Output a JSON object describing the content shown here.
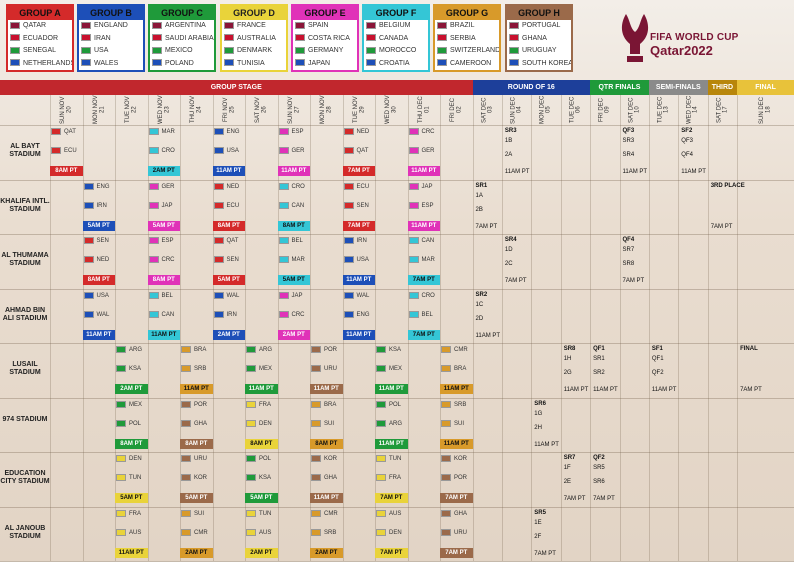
{
  "groups": [
    {
      "title": "GROUP A",
      "color": "#d42a2a",
      "teams": [
        "QATAR",
        "ECUADOR",
        "SENEGAL",
        "NETHERLANDS"
      ]
    },
    {
      "title": "GROUP B",
      "color": "#1d4fb8",
      "teams": [
        "ENGLAND",
        "IRAN",
        "USA",
        "WALES"
      ]
    },
    {
      "title": "GROUP C",
      "color": "#1f9a3a",
      "teams": [
        "ARGENTINA",
        "SAUDI ARABIA",
        "MEXICO",
        "POLAND"
      ]
    },
    {
      "title": "GROUP D",
      "color": "#e9d33a",
      "teams": [
        "FRANCE",
        "AUSTRALIA",
        "DENMARK",
        "TUNISIA"
      ]
    },
    {
      "title": "GROUP E",
      "color": "#e032b8",
      "teams": [
        "SPAIN",
        "COSTA RICA",
        "GERMANY",
        "JAPAN"
      ]
    },
    {
      "title": "GROUP F",
      "color": "#34c6d6",
      "teams": [
        "BELGIUM",
        "CANADA",
        "MOROCCO",
        "CROATIA"
      ]
    },
    {
      "title": "GROUP G",
      "color": "#d89a2a",
      "teams": [
        "BRAZIL",
        "SERBIA",
        "SWITZERLAND",
        "CAMEROON"
      ]
    },
    {
      "title": "GROUP H",
      "color": "#9b6a4a",
      "teams": [
        "PORTUGAL",
        "GHANA",
        "URUGUAY",
        "SOUTH KOREA"
      ]
    }
  ],
  "logo": {
    "line1": "FIFA WORLD CUP",
    "line2": "Qatar2022"
  },
  "phases": [
    {
      "label": "GROUP STAGE",
      "color": "#c1272d"
    },
    {
      "label": "ROUND OF 16",
      "color": "#1d3f9a"
    },
    {
      "label": "QTR FINALS",
      "color": "#1f9a3a"
    },
    {
      "label": "SEMI-FINALS",
      "color": "#8a8a8a"
    },
    {
      "label": "THIRD",
      "color": "#b8860b"
    },
    {
      "label": "FINAL",
      "color": "#e8c23a"
    }
  ],
  "dates": [
    "SUN NOV 20",
    "MON NOV 21",
    "TUE NOV 22",
    "WED NOV 23",
    "THU NOV 24",
    "FRI NOV 25",
    "SAT NOV 26",
    "SUN NOV 27",
    "MON NOV 28",
    "TUE NOV 29",
    "WED NOV 30",
    "THU DEC 01",
    "FRI DEC 02",
    "SAT DEC 03",
    "SUN DEC 04",
    "MON DEC 05",
    "TUE DEC 06",
    "FRI DEC 09",
    "SAT DEC 10",
    "TUE DEC 13",
    "WED DEC 14",
    "SAT DEC 17",
    "SUN DEC 18"
  ],
  "stadiums": [
    "AL BAYT STADIUM",
    "KHALIFA INTL. STADIUM",
    "AL THUMAMA STADIUM",
    "AHMAD BIN ALI STADIUM",
    "LUSAIL STADIUM",
    "974 STADIUM",
    "EDUCATION CITY STADIUM",
    "AL JANOUB STADIUM"
  ],
  "matches": [
    {
      "s": 0,
      "d": 0,
      "t1": "QAT",
      "t2": "ECU",
      "time": "8AM PT",
      "c": "#d42a2a"
    },
    {
      "s": 0,
      "d": 3,
      "t1": "MAR",
      "t2": "CRO",
      "time": "2AM PT",
      "c": "#34c6d6"
    },
    {
      "s": 0,
      "d": 5,
      "t1": "ENG",
      "t2": "USA",
      "time": "11AM PT",
      "c": "#1d4fb8"
    },
    {
      "s": 0,
      "d": 7,
      "t1": "ESP",
      "t2": "GER",
      "time": "11AM PT",
      "c": "#e032b8"
    },
    {
      "s": 0,
      "d": 9,
      "t1": "NED",
      "t2": "QAT",
      "time": "7AM PT",
      "c": "#d42a2a"
    },
    {
      "s": 0,
      "d": 11,
      "t1": "CRC",
      "t2": "GER",
      "time": "11AM PT",
      "c": "#e032b8"
    },
    {
      "s": 1,
      "d": 1,
      "t1": "ENG",
      "t2": "IRN",
      "time": "5AM PT",
      "c": "#1d4fb8"
    },
    {
      "s": 1,
      "d": 3,
      "t1": "GER",
      "t2": "JAP",
      "time": "5AM PT",
      "c": "#e032b8"
    },
    {
      "s": 1,
      "d": 5,
      "t1": "NED",
      "t2": "ECU",
      "time": "8AM PT",
      "c": "#d42a2a"
    },
    {
      "s": 1,
      "d": 7,
      "t1": "CRO",
      "t2": "CAN",
      "time": "8AM PT",
      "c": "#34c6d6"
    },
    {
      "s": 1,
      "d": 9,
      "t1": "ECU",
      "t2": "SEN",
      "time": "7AM PT",
      "c": "#d42a2a"
    },
    {
      "s": 1,
      "d": 11,
      "t1": "JAP",
      "t2": "ESP",
      "time": "11AM PT",
      "c": "#e032b8"
    },
    {
      "s": 2,
      "d": 1,
      "t1": "SEN",
      "t2": "NED",
      "time": "8AM PT",
      "c": "#d42a2a"
    },
    {
      "s": 2,
      "d": 3,
      "t1": "ESP",
      "t2": "CRC",
      "time": "8AM PT",
      "c": "#e032b8"
    },
    {
      "s": 2,
      "d": 5,
      "t1": "QAT",
      "t2": "SEN",
      "time": "5AM PT",
      "c": "#d42a2a"
    },
    {
      "s": 2,
      "d": 7,
      "t1": "BEL",
      "t2": "MAR",
      "time": "5AM PT",
      "c": "#34c6d6"
    },
    {
      "s": 2,
      "d": 9,
      "t1": "IRN",
      "t2": "USA",
      "time": "11AM PT",
      "c": "#1d4fb8"
    },
    {
      "s": 2,
      "d": 11,
      "t1": "CAN",
      "t2": "MAR",
      "time": "7AM PT",
      "c": "#34c6d6"
    },
    {
      "s": 3,
      "d": 1,
      "t1": "USA",
      "t2": "WAL",
      "time": "11AM PT",
      "c": "#1d4fb8"
    },
    {
      "s": 3,
      "d": 3,
      "t1": "BEL",
      "t2": "CAN",
      "time": "11AM PT",
      "c": "#34c6d6"
    },
    {
      "s": 3,
      "d": 5,
      "t1": "WAL",
      "t2": "IRN",
      "time": "2AM PT",
      "c": "#1d4fb8"
    },
    {
      "s": 3,
      "d": 7,
      "t1": "JAP",
      "t2": "CRC",
      "time": "2AM PT",
      "c": "#e032b8"
    },
    {
      "s": 3,
      "d": 9,
      "t1": "WAL",
      "t2": "ENG",
      "time": "11AM PT",
      "c": "#1d4fb8"
    },
    {
      "s": 3,
      "d": 11,
      "t1": "CRO",
      "t2": "BEL",
      "time": "7AM PT",
      "c": "#34c6d6"
    },
    {
      "s": 4,
      "d": 2,
      "t1": "ARG",
      "t2": "KSA",
      "time": "2AM PT",
      "c": "#1f9a3a"
    },
    {
      "s": 4,
      "d": 4,
      "t1": "BRA",
      "t2": "SRB",
      "time": "11AM PT",
      "c": "#d89a2a"
    },
    {
      "s": 4,
      "d": 6,
      "t1": "ARG",
      "t2": "MEX",
      "time": "11AM PT",
      "c": "#1f9a3a"
    },
    {
      "s": 4,
      "d": 8,
      "t1": "POR",
      "t2": "URU",
      "time": "11AM PT",
      "c": "#9b6a4a"
    },
    {
      "s": 4,
      "d": 10,
      "t1": "KSA",
      "t2": "MEX",
      "time": "11AM PT",
      "c": "#1f9a3a"
    },
    {
      "s": 4,
      "d": 12,
      "t1": "CMR",
      "t2": "BRA",
      "time": "11AM PT",
      "c": "#d89a2a"
    },
    {
      "s": 5,
      "d": 2,
      "t1": "MEX",
      "t2": "POL",
      "time": "8AM PT",
      "c": "#1f9a3a"
    },
    {
      "s": 5,
      "d": 4,
      "t1": "POR",
      "t2": "GHA",
      "time": "8AM PT",
      "c": "#9b6a4a"
    },
    {
      "s": 5,
      "d": 6,
      "t1": "FRA",
      "t2": "DEN",
      "time": "8AM PT",
      "c": "#e9d33a"
    },
    {
      "s": 5,
      "d": 8,
      "t1": "BRA",
      "t2": "SUI",
      "time": "8AM PT",
      "c": "#d89a2a"
    },
    {
      "s": 5,
      "d": 10,
      "t1": "POL",
      "t2": "ARG",
      "time": "11AM PT",
      "c": "#1f9a3a"
    },
    {
      "s": 5,
      "d": 12,
      "t1": "SRB",
      "t2": "SUI",
      "time": "11AM PT",
      "c": "#d89a2a"
    },
    {
      "s": 6,
      "d": 2,
      "t1": "DEN",
      "t2": "TUN",
      "time": "5AM PT",
      "c": "#e9d33a"
    },
    {
      "s": 6,
      "d": 4,
      "t1": "URU",
      "t2": "KOR",
      "time": "5AM PT",
      "c": "#9b6a4a"
    },
    {
      "s": 6,
      "d": 6,
      "t1": "POL",
      "t2": "KSA",
      "time": "5AM PT",
      "c": "#1f9a3a"
    },
    {
      "s": 6,
      "d": 8,
      "t1": "KOR",
      "t2": "GHA",
      "time": "11AM PT",
      "c": "#9b6a4a"
    },
    {
      "s": 6,
      "d": 10,
      "t1": "TUN",
      "t2": "FRA",
      "time": "7AM PT",
      "c": "#e9d33a"
    },
    {
      "s": 6,
      "d": 12,
      "t1": "KOR",
      "t2": "POR",
      "time": "7AM PT",
      "c": "#9b6a4a"
    },
    {
      "s": 7,
      "d": 2,
      "t1": "FRA",
      "t2": "AUS",
      "time": "11AM PT",
      "c": "#e9d33a"
    },
    {
      "s": 7,
      "d": 4,
      "t1": "SUI",
      "t2": "CMR",
      "time": "2AM PT",
      "c": "#d89a2a"
    },
    {
      "s": 7,
      "d": 6,
      "t1": "TUN",
      "t2": "AUS",
      "time": "2AM PT",
      "c": "#e9d33a"
    },
    {
      "s": 7,
      "d": 8,
      "t1": "CMR",
      "t2": "SRB",
      "time": "2AM PT",
      "c": "#d89a2a"
    },
    {
      "s": 7,
      "d": 10,
      "t1": "AUS",
      "t2": "DEN",
      "time": "7AM PT",
      "c": "#e9d33a"
    },
    {
      "s": 7,
      "d": 12,
      "t1": "GHA",
      "t2": "URU",
      "time": "7AM PT",
      "c": "#9b6a4a"
    }
  ],
  "knockouts": [
    {
      "s": 0,
      "d": 14,
      "label": "SR3",
      "a": "1B",
      "b": "2A",
      "time": "11AM PT"
    },
    {
      "s": 1,
      "d": 13,
      "label": "SR1",
      "a": "1A",
      "b": "2B",
      "time": "7AM PT"
    },
    {
      "s": 2,
      "d": 14,
      "label": "SR4",
      "a": "1D",
      "b": "2C",
      "time": "7AM PT"
    },
    {
      "s": 3,
      "d": 13,
      "label": "SR2",
      "a": "1C",
      "b": "2D",
      "time": "11AM PT"
    },
    {
      "s": 4,
      "d": 16,
      "label": "SR8",
      "a": "1H",
      "b": "2G",
      "time": "11AM PT"
    },
    {
      "s": 5,
      "d": 15,
      "label": "SR6",
      "a": "1G",
      "b": "2H",
      "time": "11AM PT"
    },
    {
      "s": 6,
      "d": 16,
      "label": "SR7",
      "a": "1F",
      "b": "2E",
      "time": "7AM PT"
    },
    {
      "s": 7,
      "d": 15,
      "label": "SR5",
      "a": "1E",
      "b": "2F",
      "time": "7AM PT"
    },
    {
      "s": 0,
      "d": 18,
      "label": "QF3",
      "a": "SR3",
      "b": "SR4",
      "time": "11AM PT"
    },
    {
      "s": 2,
      "d": 18,
      "label": "QF4",
      "a": "SR7",
      "b": "SR8",
      "time": "7AM PT"
    },
    {
      "s": 4,
      "d": 17,
      "label": "QF1",
      "a": "SR1",
      "b": "SR2",
      "time": "11AM PT"
    },
    {
      "s": 6,
      "d": 17,
      "label": "QF2",
      "a": "SR5",
      "b": "SR6",
      "time": "7AM PT"
    },
    {
      "s": 0,
      "d": 20,
      "label": "SF2",
      "a": "QF3",
      "b": "QF4",
      "time": "11AM PT"
    },
    {
      "s": 4,
      "d": 19,
      "label": "SF1",
      "a": "QF1",
      "b": "QF2",
      "time": "11AM PT"
    },
    {
      "s": 1,
      "d": 21,
      "label": "3RD PLACE",
      "a": "",
      "b": "",
      "time": "7AM PT"
    },
    {
      "s": 4,
      "d": 22,
      "label": "FINAL",
      "a": "",
      "b": "",
      "time": "7AM PT"
    }
  ]
}
